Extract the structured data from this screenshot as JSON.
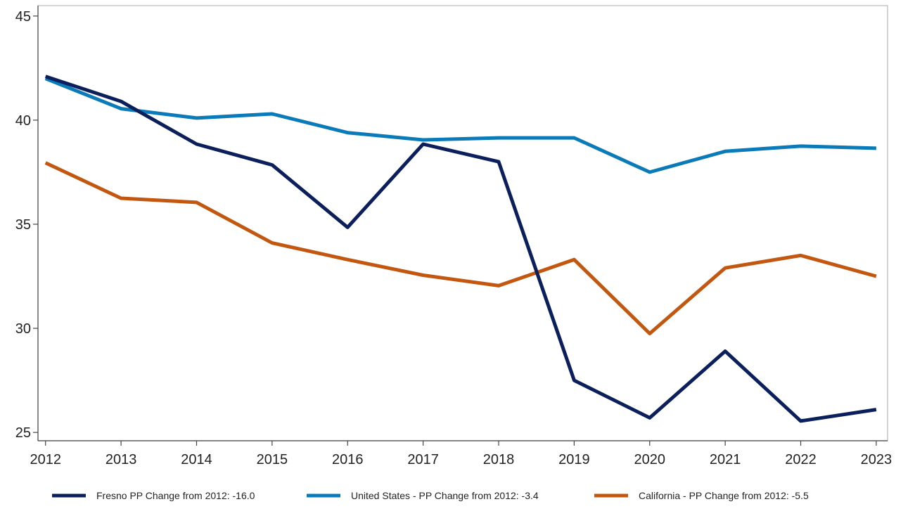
{
  "chart_data": {
    "type": "line",
    "title": "",
    "xlabel": "",
    "ylabel": "",
    "x": [
      2012,
      2013,
      2014,
      2015,
      2016,
      2017,
      2018,
      2019,
      2020,
      2021,
      2022,
      2023
    ],
    "x_ticks": [
      "2012",
      "2013",
      "2014",
      "2015",
      "2016",
      "2017",
      "2018",
      "2019",
      "2020",
      "2021",
      "2022",
      "2023"
    ],
    "y_ticks": [
      "25",
      "30",
      "35",
      "40",
      "45"
    ],
    "ylim": [
      24.6,
      45.5
    ],
    "xlim": [
      2011.9,
      2023.15
    ],
    "grid": false,
    "legend_position": "bottom",
    "series": [
      {
        "name": "Fresno PP Change from 2012: -16.0",
        "color": "#0b1f5c",
        "values": [
          42.1,
          40.9,
          38.85,
          37.85,
          34.85,
          38.85,
          38.0,
          27.5,
          25.7,
          28.9,
          25.55,
          26.1
        ]
      },
      {
        "name": "United States - PP Change from 2012: -3.4",
        "color": "#0a7ab8",
        "values": [
          42.0,
          40.55,
          40.1,
          40.3,
          39.4,
          39.05,
          39.15,
          39.15,
          37.5,
          38.5,
          38.75,
          38.65
        ]
      },
      {
        "name": "California - PP Change from 2012: -5.5",
        "color": "#c3570f",
        "values": [
          37.95,
          36.25,
          36.05,
          34.1,
          33.3,
          32.55,
          32.05,
          33.3,
          29.75,
          32.9,
          33.5,
          32.5
        ]
      }
    ]
  }
}
